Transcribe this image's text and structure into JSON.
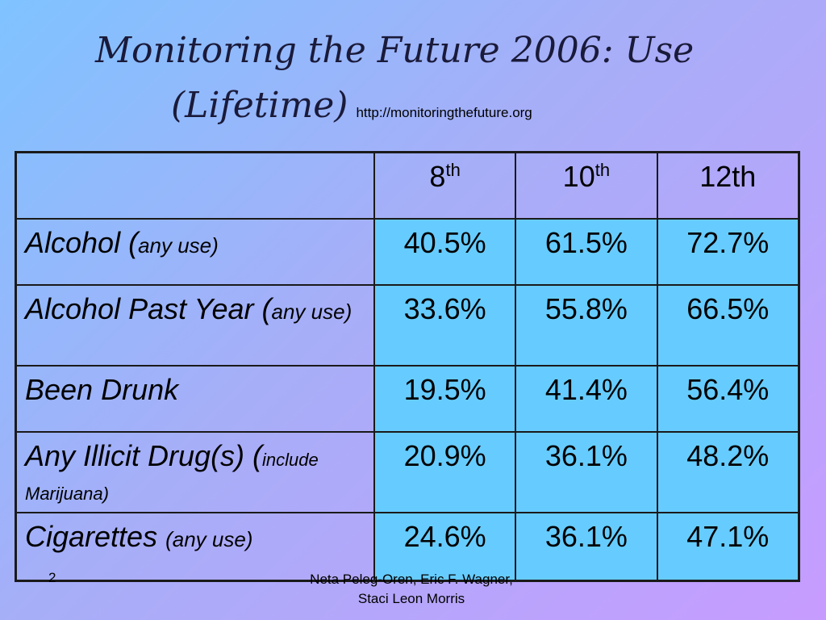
{
  "title": {
    "line1": "Monitoring the Future 2006: Use",
    "line2": "(Lifetime)",
    "url": "http://monitoringthefuture.org"
  },
  "table": {
    "headers": [
      {
        "base": "8",
        "sup": "th"
      },
      {
        "base": "10",
        "sup": "th"
      },
      {
        "base": "12th",
        "sup": ""
      }
    ],
    "rows": [
      {
        "label_main": "Alcohol (",
        "label_paren": "any use)",
        "values": [
          "40.5%",
          "61.5%",
          "72.7%"
        ]
      },
      {
        "label_main": "Alcohol Past Year (",
        "label_paren": "any use)",
        "values": [
          "33.6%",
          "55.8%",
          "66.5%"
        ]
      },
      {
        "label_main": "Been Drunk",
        "label_paren": "",
        "values": [
          "19.5%",
          "41.4%",
          "56.4%"
        ]
      },
      {
        "label_main": "Any Illicit Drug(s) (",
        "label_paren": "include Marijuana)",
        "values": [
          "20.9%",
          "36.1%",
          "48.2%"
        ]
      },
      {
        "label_main": "Cigarettes ",
        "label_paren": "(any use)",
        "values": [
          "24.6%",
          "36.1%",
          "47.1%"
        ]
      }
    ]
  },
  "footer": {
    "page_number": "2",
    "author_line1": "Neta Peleg-Oren, Eric F. Wagner,",
    "author_line2": "Staci Leon Morris"
  },
  "colors": {
    "cell_fill": "#66ccff",
    "background_start": "#7fc3ff",
    "background_end": "#c79cff"
  }
}
